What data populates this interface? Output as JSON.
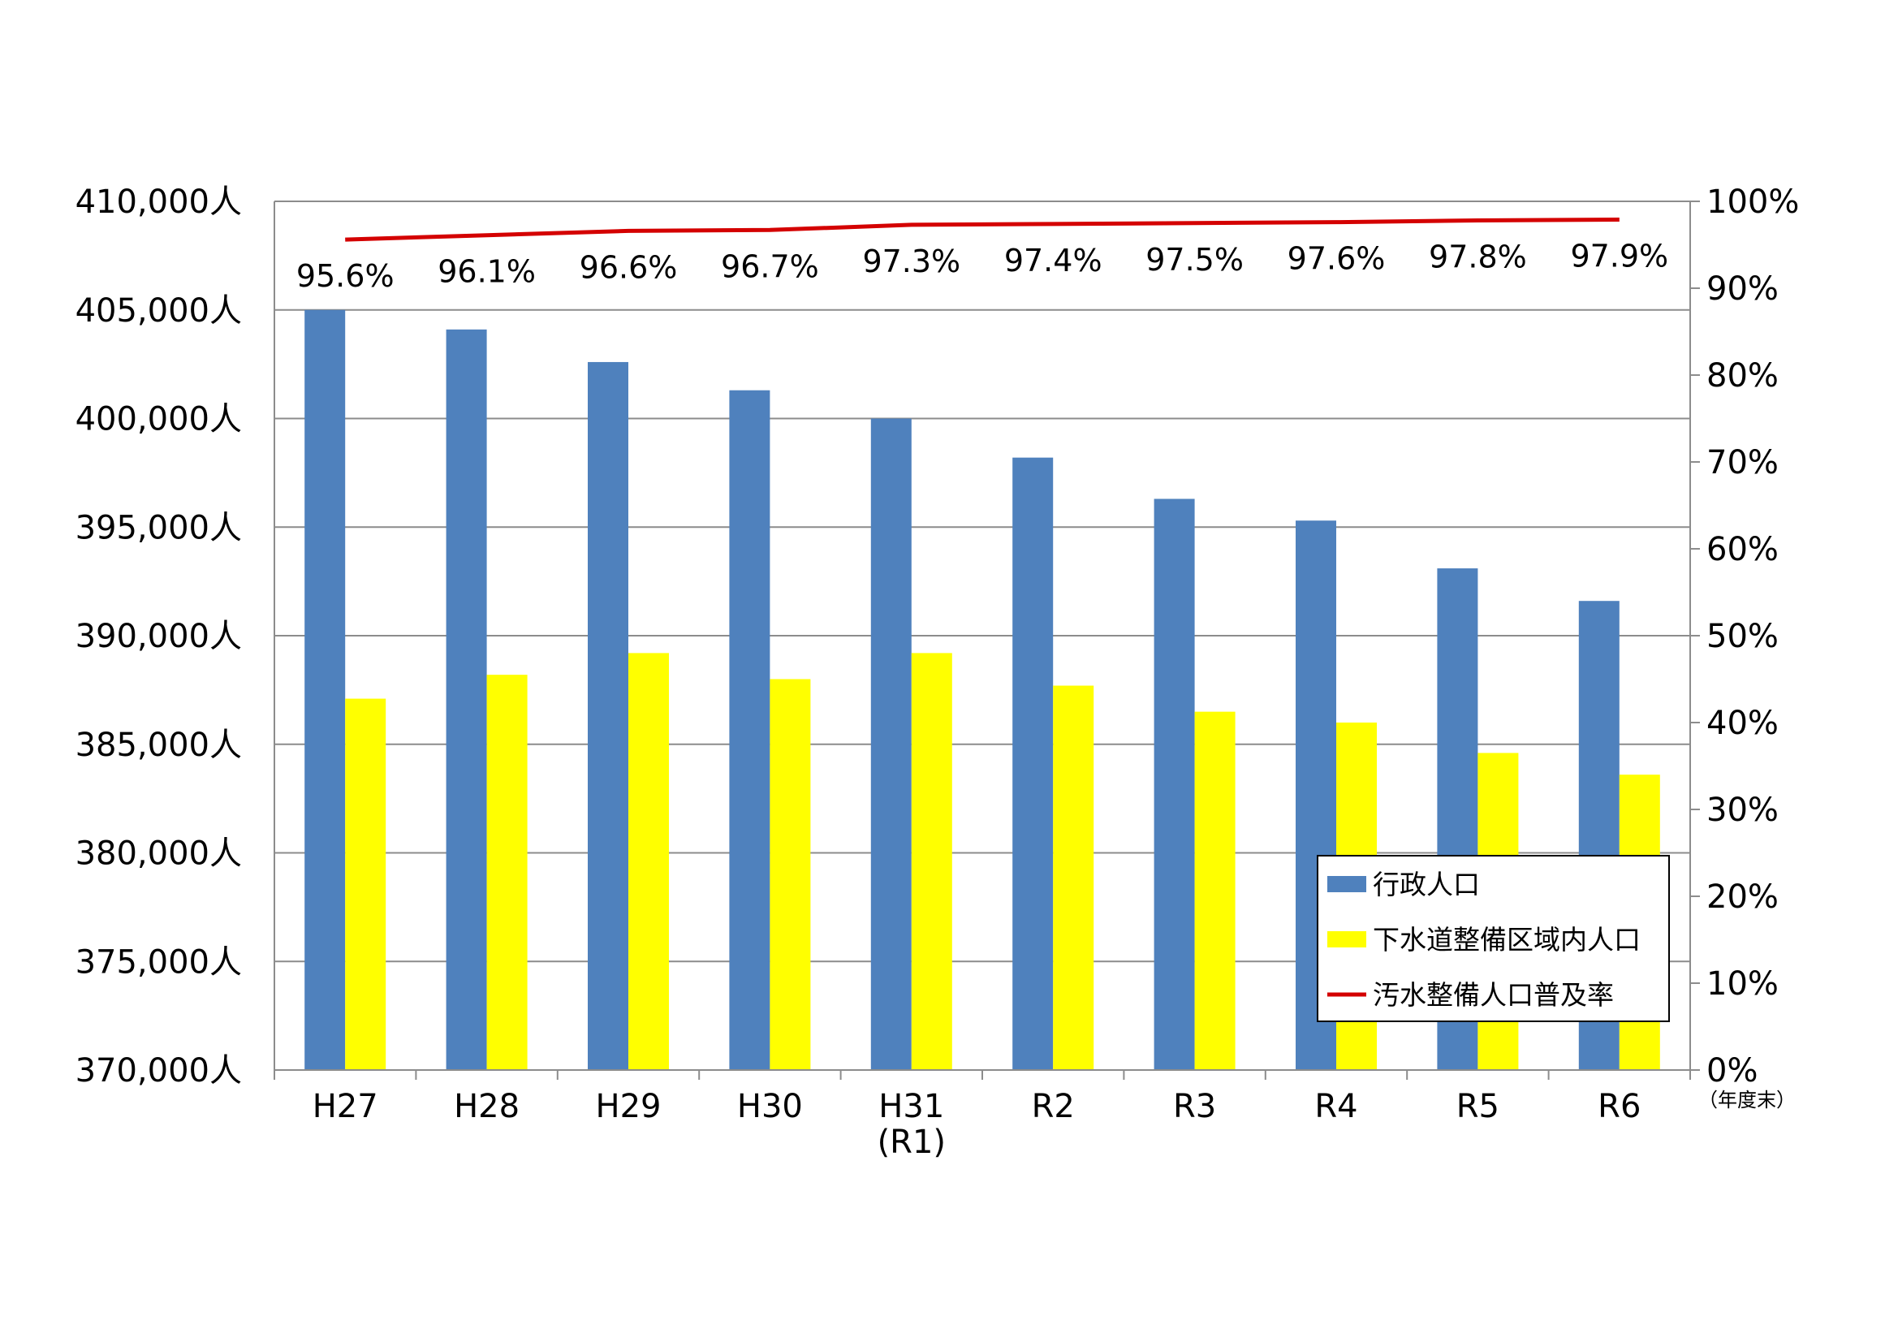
{
  "chart_data": {
    "type": "bar",
    "categories": [
      "H27",
      "H28",
      "H29",
      "H30",
      "H31\n(R1)",
      "R2",
      "R3",
      "R4",
      "R5",
      "R6"
    ],
    "series": [
      {
        "name": "行政人口",
        "axis": "left",
        "type": "bar",
        "color": "#4F81BD",
        "values": [
          405000,
          404100,
          402600,
          401300,
          400000,
          398200,
          396300,
          395300,
          393100,
          391600
        ]
      },
      {
        "name": "下水道整備区域内人口",
        "axis": "left",
        "type": "bar",
        "color": "#FFFF00",
        "values": [
          387100,
          388200,
          389200,
          388000,
          389200,
          387700,
          386500,
          386000,
          384600,
          383600
        ]
      },
      {
        "name": "汚水整備人口普及率",
        "axis": "right",
        "type": "line",
        "color": "#D40000",
        "values": [
          95.6,
          96.1,
          96.6,
          96.7,
          97.3,
          97.4,
          97.5,
          97.6,
          97.8,
          97.9
        ],
        "labels": [
          "95.6%",
          "96.1%",
          "96.6%",
          "96.7%",
          "97.3%",
          "97.4%",
          "97.5%",
          "97.6%",
          "97.8%",
          "97.9%"
        ]
      }
    ],
    "y_left": {
      "ylim": [
        370000,
        410000
      ],
      "ticks": [
        370000,
        375000,
        380000,
        385000,
        390000,
        395000,
        400000,
        405000,
        410000
      ],
      "tick_labels": [
        "370,000人",
        "375,000人",
        "380,000人",
        "385,000人",
        "390,000人",
        "395,000人",
        "400,000人",
        "405,000人",
        "410,000人"
      ]
    },
    "y_right": {
      "ylim": [
        0,
        100
      ],
      "ticks": [
        0,
        10,
        20,
        30,
        40,
        50,
        60,
        70,
        80,
        90,
        100
      ],
      "tick_labels": [
        "0%",
        "10%",
        "20%",
        "30%",
        "40%",
        "50%",
        "60%",
        "70%",
        "80%",
        "90%",
        "100%"
      ]
    },
    "x_unit": "（年度末）",
    "legend_position": "bottom-right",
    "grid": true
  }
}
